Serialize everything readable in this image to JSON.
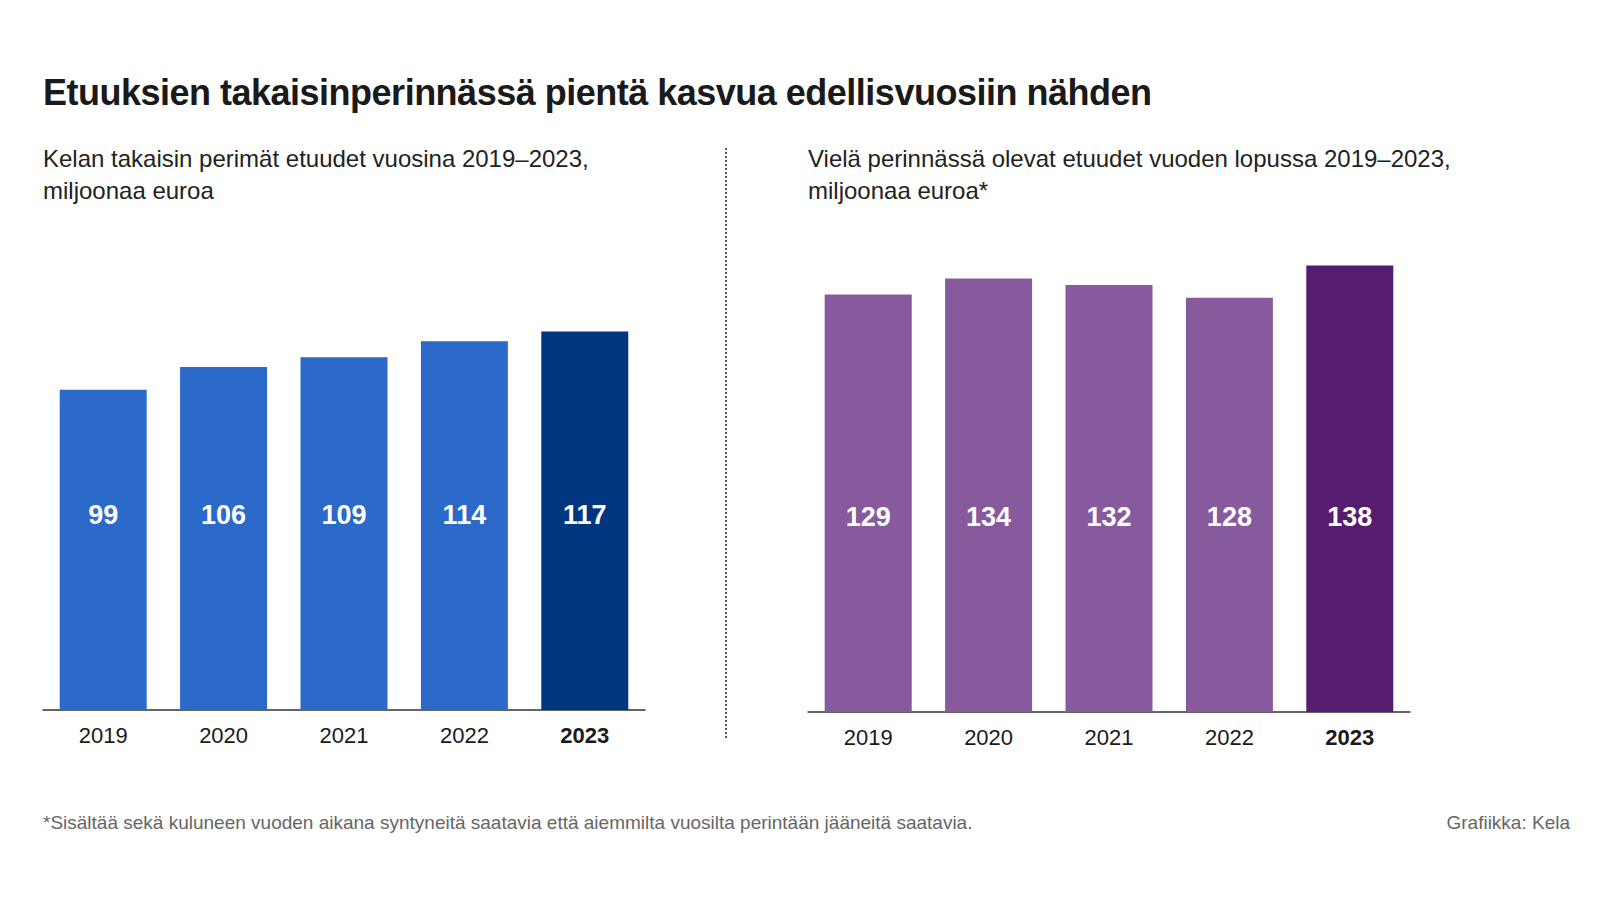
{
  "title": "Etuuksien takaisinperinnässä pientä kasvua edellisvuosiin nähden",
  "footnote": "*Sisältää sekä kuluneen vuoden aikana syntyneitä saatavia että aiemmilta vuosilta perintään jääneitä saatavia.",
  "credit": "Grafiikka: Kela",
  "chart_data": [
    {
      "type": "bar",
      "subtitle": "Kelan takaisin perimät etuudet vuosina 2019–2023,\nmiljoonaa euroa",
      "categories": [
        "2019",
        "2020",
        "2021",
        "2022",
        "2023"
      ],
      "values": [
        99,
        106,
        109,
        114,
        117
      ],
      "colors": [
        "#2b6ac8",
        "#2b6ac8",
        "#2b6ac8",
        "#2b6ac8",
        "#003580"
      ],
      "ylim": [
        0,
        140
      ],
      "grid": false,
      "data_labels": true,
      "tick_labels": "x"
    },
    {
      "type": "bar",
      "subtitle": "Vielä perinnässä olevat etuudet vuoden lopussa 2019–2023,\nmiljoonaa euroa*",
      "categories": [
        "2019",
        "2020",
        "2021",
        "2022",
        "2023"
      ],
      "values": [
        129,
        134,
        132,
        128,
        138
      ],
      "colors": [
        "#875a9e",
        "#875a9e",
        "#875a9e",
        "#875a9e",
        "#561d6e"
      ],
      "ylim": [
        0,
        140
      ],
      "grid": false,
      "data_labels": true,
      "tick_labels": "x"
    }
  ]
}
